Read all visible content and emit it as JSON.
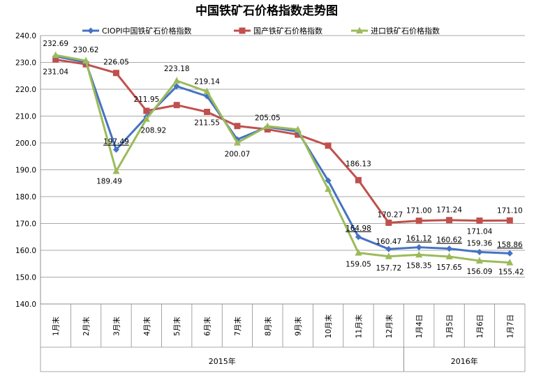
{
  "chart_data": {
    "type": "line",
    "title": "中国铁矿石价格指数走势图",
    "categories": [
      "1月末",
      "2月末",
      "3月末",
      "4月末",
      "5月末",
      "6月末",
      "7月末",
      "8月末",
      "9月末",
      "10月末",
      "11月末",
      "12月末",
      "1月4日",
      "1月5日",
      "1月6日",
      "1月7日"
    ],
    "groups": [
      {
        "label": "2015年",
        "start": 0,
        "end": 11
      },
      {
        "label": "2016年",
        "start": 12,
        "end": 15
      }
    ],
    "ylim": [
      140,
      240
    ],
    "yticks": [
      "140.0",
      "150.0",
      "160.0",
      "170.0",
      "180.0",
      "190.0",
      "200.0",
      "210.0",
      "220.0",
      "230.0",
      "240.0"
    ],
    "grid": true,
    "legend_position": "top",
    "series": [
      {
        "name": "CIOPI中国铁矿石价格指数",
        "color": "#4472C4",
        "marker": "diamond",
        "values": [
          232.3,
          230.0,
          197.49,
          209.7,
          221.1,
          217.4,
          201.3,
          206.0,
          204.2,
          186.0,
          164.98,
          160.47,
          161.12,
          160.62,
          159.36,
          158.86
        ],
        "labels": [
          "",
          "",
          "197.49",
          "",
          "",
          "",
          "",
          "",
          "",
          "",
          "164.98",
          "160.47",
          "161.12",
          "160.62",
          "159.36",
          "158.86"
        ]
      },
      {
        "name": "国产铁矿石价格指数",
        "color": "#C0504D",
        "marker": "square",
        "values": [
          231.04,
          229.3,
          226.05,
          211.95,
          214.1,
          211.55,
          206.3,
          205.05,
          203.1,
          199.0,
          186.13,
          170.27,
          171.0,
          171.24,
          171.04,
          171.1
        ],
        "labels": [
          "231.04",
          "",
          "226.05",
          "211.95",
          "",
          "211.55",
          "",
          "205.05",
          "",
          "",
          "186.13",
          "170.27",
          "171.00",
          "171.24",
          "171.04",
          "171.10"
        ]
      },
      {
        "name": "进口铁矿石价格指数",
        "color": "#9BBB59",
        "marker": "triangle",
        "values": [
          232.69,
          230.62,
          189.49,
          208.92,
          223.18,
          219.14,
          200.07,
          206.2,
          205.0,
          182.8,
          159.05,
          157.72,
          158.35,
          157.65,
          156.09,
          155.42
        ],
        "labels": [
          "232.69",
          "230.62",
          "189.49",
          "208.92",
          "223.18",
          "219.14",
          "200.07",
          "",
          "",
          "",
          "159.05",
          "157.72",
          "158.35",
          "157.65",
          "156.09",
          "155.42"
        ]
      }
    ]
  }
}
